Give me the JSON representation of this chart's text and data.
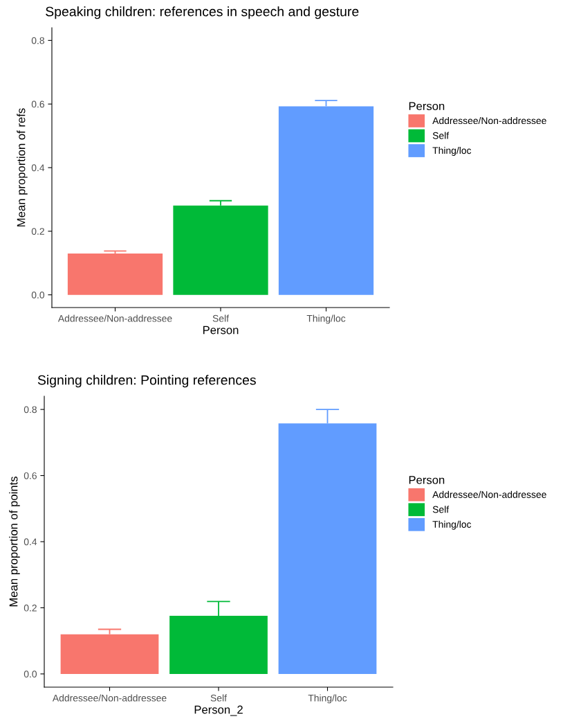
{
  "chart_data": [
    {
      "type": "bar",
      "title": "Speaking children: references in speech and gesture",
      "xlabel": "Person",
      "ylabel": "Mean proportion of refs",
      "legend_title": "Person",
      "legend": "right",
      "categories": [
        "Addressee/Non-addressee",
        "Self",
        "Thing/loc"
      ],
      "series": [
        {
          "name": "Addressee/Non-addressee",
          "color": "#f8766d",
          "values": [
            0.13,
            null,
            null
          ],
          "errors": [
            [
              0.13,
              0.138
            ],
            null,
            null
          ]
        },
        {
          "name": "Self",
          "color": "#00ba38",
          "values": [
            null,
            0.281,
            null
          ],
          "errors": [
            null,
            [
              0.281,
              0.296
            ],
            null
          ]
        },
        {
          "name": "Thing/loc",
          "color": "#619cff",
          "values": [
            null,
            null,
            0.593
          ],
          "errors": [
            null,
            null,
            [
              0.593,
              0.611
            ]
          ]
        }
      ],
      "ylim": [
        -0.04,
        0.84
      ],
      "yticks": [
        {
          "value": 0,
          "label": "0.0"
        },
        0.2,
        0.4,
        0.6,
        0.8
      ],
      "grid": false
    },
    {
      "type": "bar",
      "title": "Signing children: Pointing references",
      "xlabel": "Person_2",
      "ylabel": "Mean proportion of points",
      "legend_title": "Person",
      "legend": "right",
      "categories": [
        "Addressee/Non-addressee",
        "Self",
        "Thing/loc"
      ],
      "series": [
        {
          "name": "Addressee/Non-addressee",
          "color": "#f8766d",
          "values": [
            0.12,
            null,
            null
          ],
          "errors": [
            [
              0.12,
              0.135
            ],
            null,
            null
          ]
        },
        {
          "name": "Self",
          "color": "#00ba38",
          "values": [
            null,
            0.176,
            null
          ],
          "errors": [
            null,
            [
              0.176,
              0.219
            ],
            null
          ]
        },
        {
          "name": "Thing/loc",
          "color": "#619cff",
          "values": [
            null,
            null,
            0.758
          ],
          "errors": [
            null,
            null,
            [
              0.758,
              0.8
            ]
          ]
        }
      ],
      "ylim": [
        -0.04,
        0.84
      ],
      "yticks": [
        {
          "value": 0,
          "label": "0.0"
        },
        0.2,
        0.4,
        0.6,
        0.8
      ],
      "grid": false
    }
  ]
}
